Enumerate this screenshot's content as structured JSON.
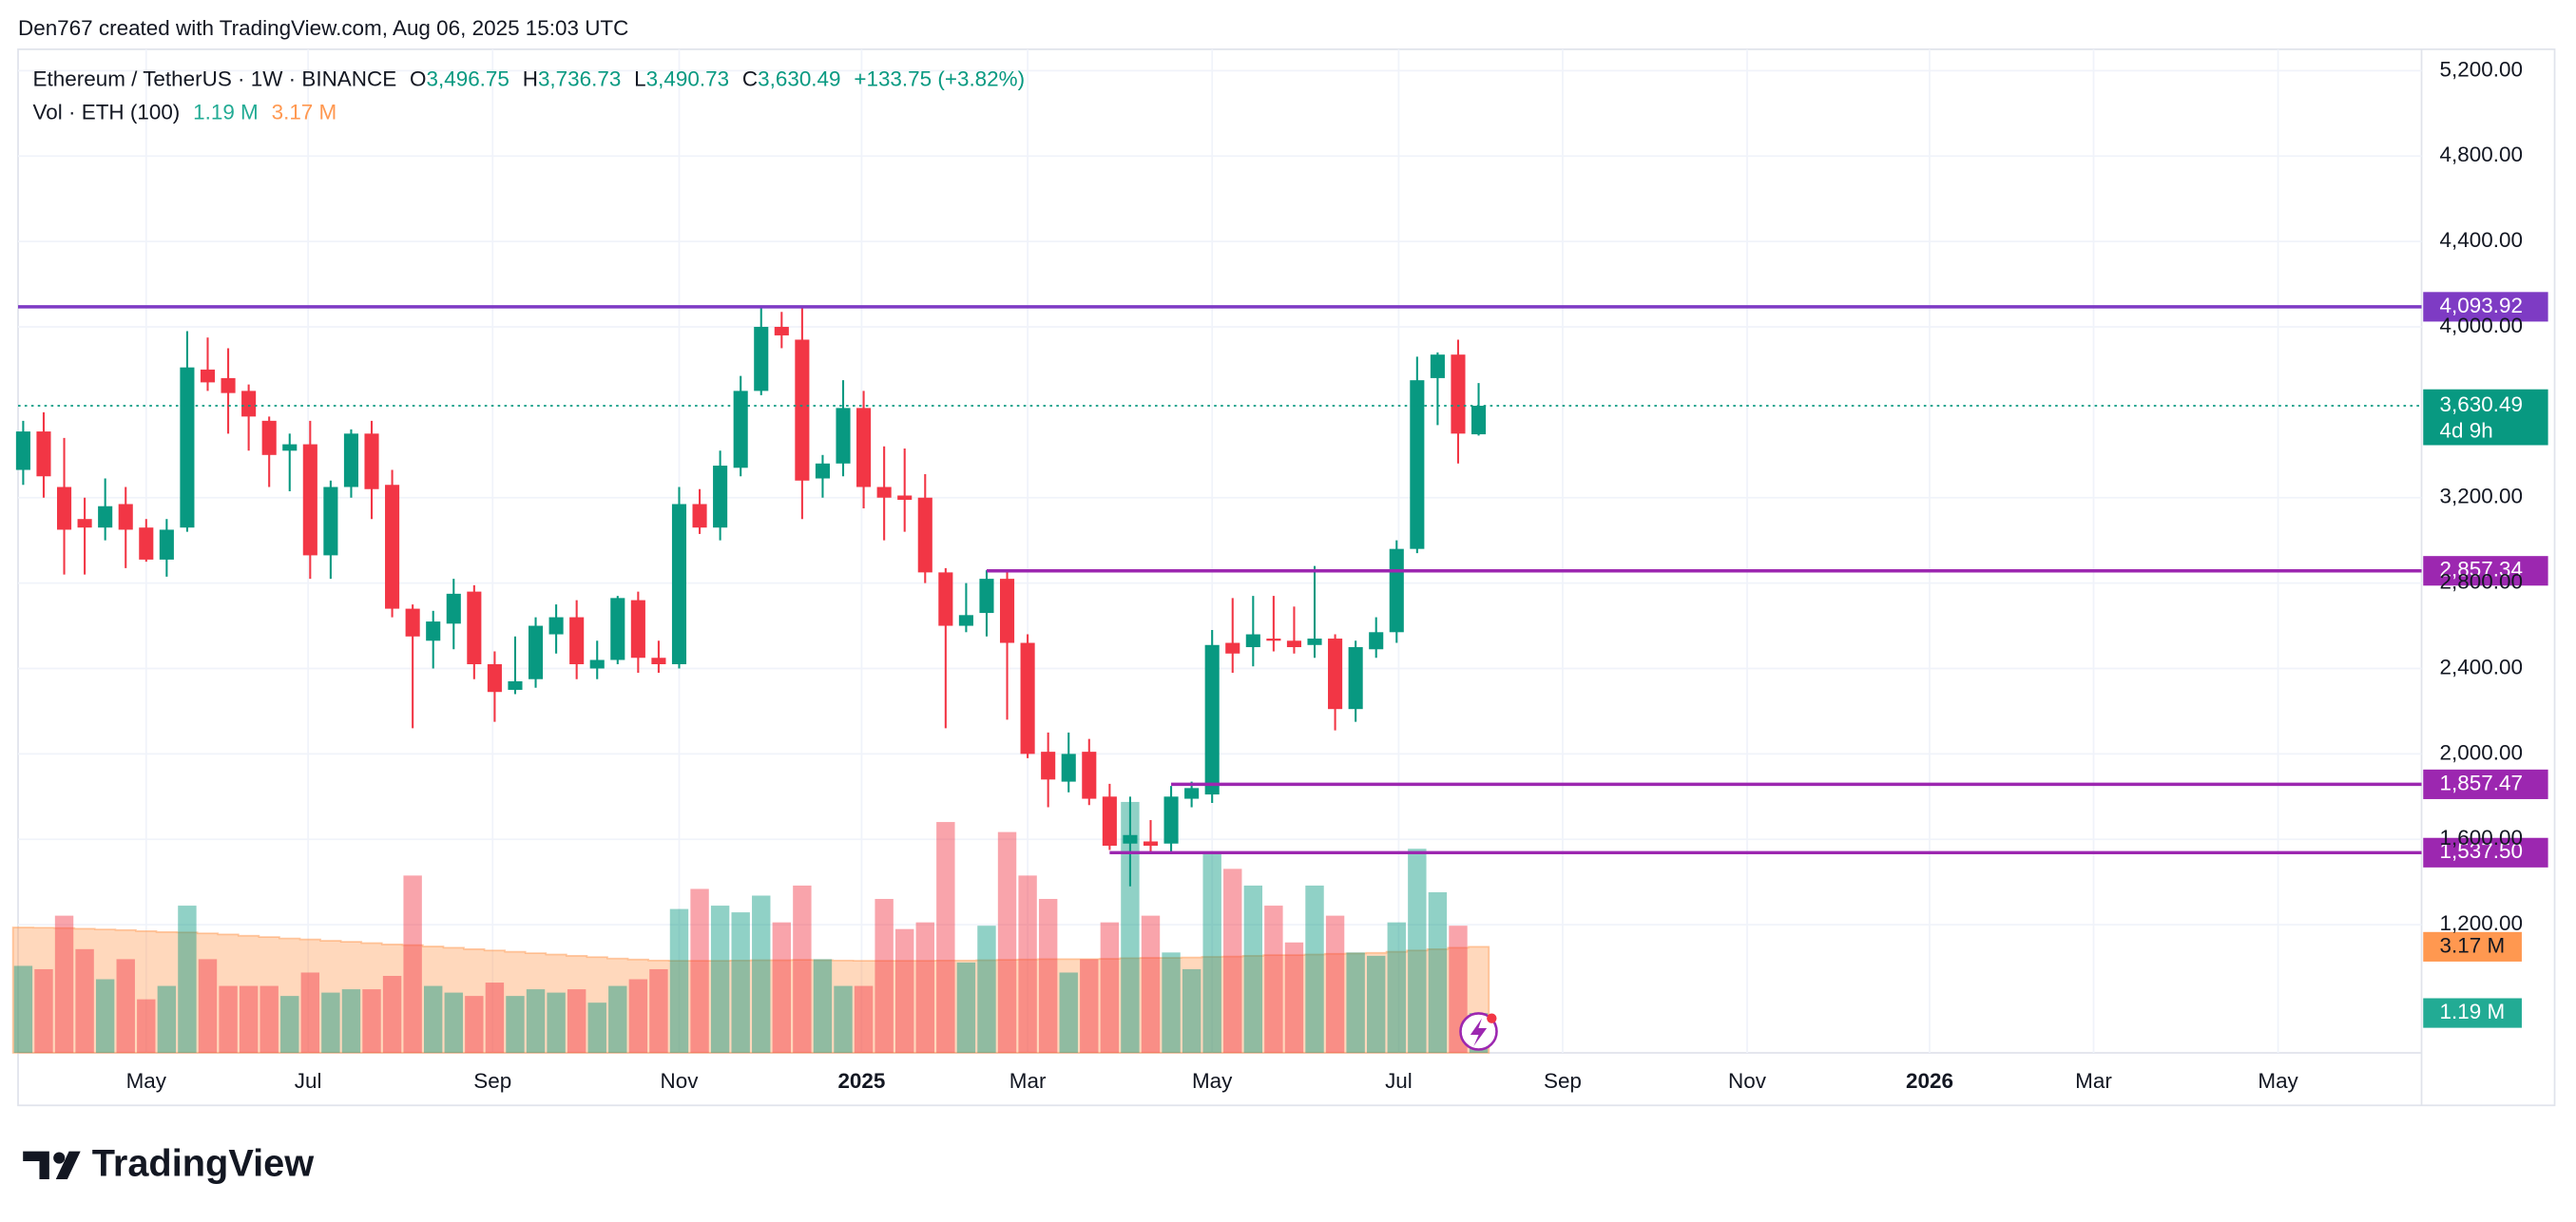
{
  "header": {
    "attribution": "Den767 created with TradingView.com, Aug 06, 2025 15:03 UTC"
  },
  "footer": {
    "brand": "TradingView"
  },
  "chart_data": {
    "type": "candlestick",
    "title": "Ethereum / TetherUS · 1W · BINANCE",
    "ohlc_legend": [
      {
        "key": "O",
        "value": "3,496.75"
      },
      {
        "key": "H",
        "value": "3,736.73"
      },
      {
        "key": "L",
        "value": "3,490.73"
      },
      {
        "key": "C",
        "value": "3,630.49"
      }
    ],
    "change": "+133.75 (+3.82%)",
    "volume_legend": {
      "label": "Vol · ETH (100)",
      "volume": "1.19 M",
      "ma": "3.17 M"
    },
    "up_color": "#089981",
    "down_color": "#f23645",
    "open": [
      3330,
      3510,
      3250,
      3100,
      3060,
      3170,
      3060,
      2910,
      3060,
      3800,
      3760,
      3700,
      3560,
      3420,
      3450,
      2930,
      3250,
      3500,
      3260,
      2680,
      2530,
      2610,
      2760,
      2420,
      2300,
      2350,
      2560,
      2640,
      2400,
      2440,
      2720,
      2450,
      2420,
      3170,
      3060,
      3340,
      3700,
      4000,
      3940,
      3290,
      3360,
      3620,
      3250,
      3210,
      3200,
      2850,
      2600,
      2660,
      2820,
      2520,
      2010,
      1870,
      2010,
      1800,
      1580,
      1590,
      1580,
      1790,
      1810,
      2520,
      2500,
      2540,
      2530,
      2510,
      2540,
      2210,
      2490,
      2570,
      2960,
      3760,
      3870,
      3496.75
    ],
    "high": [
      3560,
      3600,
      3480,
      3200,
      3290,
      3250,
      3100,
      3100,
      3980,
      3950,
      3900,
      3730,
      3580,
      3500,
      3560,
      3280,
      3520,
      3560,
      3330,
      2700,
      2670,
      2820,
      2790,
      2480,
      2550,
      2640,
      2700,
      2720,
      2530,
      2740,
      2760,
      2530,
      3250,
      3240,
      3420,
      3770,
      4100,
      4070,
      4100,
      3400,
      3750,
      3700,
      3440,
      3430,
      3310,
      2870,
      2800,
      2860,
      2850,
      2560,
      2100,
      2100,
      2070,
      1860,
      1800,
      1690,
      1850,
      1870,
      2580,
      2730,
      2740,
      2740,
      2690,
      2880,
      2560,
      2530,
      2640,
      3000,
      3860,
      3880,
      3940,
      3736.73
    ],
    "low": [
      3260,
      3200,
      2840,
      2840,
      3000,
      2870,
      2900,
      2830,
      3040,
      3700,
      3500,
      3420,
      3250,
      3230,
      2820,
      2820,
      3200,
      3100,
      2640,
      2120,
      2400,
      2490,
      2350,
      2150,
      2280,
      2310,
      2470,
      2350,
      2350,
      2420,
      2380,
      2380,
      2400,
      3030,
      3000,
      3300,
      3680,
      3900,
      3100,
      3200,
      3300,
      3150,
      3000,
      3040,
      2800,
      2120,
      2570,
      2550,
      2160,
      1980,
      1750,
      1820,
      1760,
      1550,
      1380,
      1540,
      1540,
      1750,
      1770,
      2380,
      2410,
      2480,
      2470,
      2450,
      2110,
      2150,
      2450,
      2520,
      2940,
      3540,
      3360,
      3490.73
    ],
    "close": [
      3510,
      3300,
      3050,
      3060,
      3160,
      3050,
      2910,
      3050,
      3810,
      3740,
      3690,
      3580,
      3400,
      3450,
      2930,
      3250,
      3500,
      3240,
      2680,
      2550,
      2620,
      2750,
      2420,
      2290,
      2340,
      2600,
      2640,
      2420,
      2440,
      2730,
      2450,
      2420,
      3170,
      3060,
      3350,
      3700,
      4000,
      3960,
      3280,
      3360,
      3620,
      3250,
      3200,
      3190,
      2850,
      2600,
      2650,
      2820,
      2520,
      2000,
      1880,
      2000,
      1790,
      1570,
      1620,
      1570,
      1800,
      1840,
      2510,
      2470,
      2560,
      2530,
      2500,
      2540,
      2210,
      2500,
      2570,
      2960,
      3750,
      3870,
      3500,
      3630.49
    ],
    "volume": [
      2.6,
      2.5,
      4.1,
      3.1,
      2.2,
      2.8,
      1.6,
      2.0,
      4.4,
      2.8,
      2.0,
      2.0,
      2.0,
      1.7,
      2.4,
      1.8,
      1.9,
      1.9,
      2.3,
      5.3,
      2.0,
      1.8,
      1.7,
      2.1,
      1.7,
      1.9,
      1.8,
      1.9,
      1.5,
      2.0,
      2.2,
      2.5,
      4.3,
      4.9,
      4.4,
      4.2,
      4.7,
      3.9,
      5.0,
      2.8,
      2.0,
      2.0,
      4.6,
      3.7,
      3.9,
      6.9,
      2.7,
      3.8,
      6.6,
      5.3,
      4.6,
      2.4,
      2.8,
      3.9,
      7.5,
      4.1,
      3.0,
      2.5,
      6.0,
      5.5,
      5.0,
      4.4,
      3.3,
      5.0,
      4.1,
      3.0,
      2.9,
      3.9,
      6.1,
      4.8,
      3.8,
      1.19
    ],
    "volume_ma": [
      3.75,
      3.74,
      3.73,
      3.71,
      3.69,
      3.67,
      3.64,
      3.61,
      3.6,
      3.57,
      3.54,
      3.5,
      3.46,
      3.42,
      3.39,
      3.35,
      3.32,
      3.28,
      3.24,
      3.22,
      3.18,
      3.14,
      3.1,
      3.06,
      3.02,
      2.98,
      2.94,
      2.9,
      2.86,
      2.82,
      2.79,
      2.76,
      2.75,
      2.75,
      2.75,
      2.76,
      2.77,
      2.77,
      2.78,
      2.77,
      2.76,
      2.75,
      2.75,
      2.75,
      2.75,
      2.76,
      2.76,
      2.77,
      2.78,
      2.79,
      2.8,
      2.8,
      2.8,
      2.81,
      2.83,
      2.84,
      2.84,
      2.85,
      2.87,
      2.88,
      2.9,
      2.92,
      2.92,
      2.94,
      2.96,
      2.97,
      2.99,
      3.02,
      3.06,
      3.1,
      3.14,
      3.17
    ],
    "xlim": [
      -0.25,
      117
    ],
    "xticks": [
      {
        "value": 6.0,
        "label": "May"
      },
      {
        "value": 13.9,
        "label": "Jul"
      },
      {
        "value": 22.9,
        "label": "Sep"
      },
      {
        "value": 32.0,
        "label": "Nov"
      },
      {
        "value": 40.9,
        "label": "2025"
      },
      {
        "value": 49.0,
        "label": "Mar"
      },
      {
        "value": 58.0,
        "label": "May"
      },
      {
        "value": 67.1,
        "label": "Jul"
      },
      {
        "value": 75.1,
        "label": "Sep"
      },
      {
        "value": 84.1,
        "label": "Nov"
      },
      {
        "value": 93.0,
        "label": "2026"
      },
      {
        "value": 101.0,
        "label": "Mar"
      },
      {
        "value": 110.0,
        "label": "May"
      }
    ],
    "ylim": [
      600,
      5300
    ],
    "yticks": [
      {
        "value": 5200,
        "label": "5,200.00"
      },
      {
        "value": 4800,
        "label": "4,800.00"
      },
      {
        "value": 4400,
        "label": "4,400.00"
      },
      {
        "value": 4000,
        "label": "4,000.00"
      },
      {
        "value": 3200,
        "label": "3,200.00"
      },
      {
        "value": 2800,
        "label": "2,800.00"
      },
      {
        "value": 2400,
        "label": "2,400.00"
      },
      {
        "value": 2000,
        "label": "2,000.00"
      },
      {
        "value": 1600,
        "label": "1,600.00"
      },
      {
        "value": 1200,
        "label": "1,200.00"
      }
    ],
    "y2lim": [
      0,
      30
    ],
    "grid": true,
    "levels": [
      {
        "value": 4093.92,
        "label": "4,093.92",
        "color": "#7e3bc4"
      },
      {
        "value": 2857.34,
        "label": "2,857.34",
        "color": "#9c27b0",
        "start": 47
      },
      {
        "value": 1857.47,
        "label": "1,857.47",
        "color": "#9c27b0",
        "start": 56
      },
      {
        "value": 1537.5,
        "label": "1,537.50",
        "color": "#9c27b0",
        "start": 53
      }
    ],
    "last_price_label": "3,630.49",
    "countdown": "4d 9h"
  }
}
